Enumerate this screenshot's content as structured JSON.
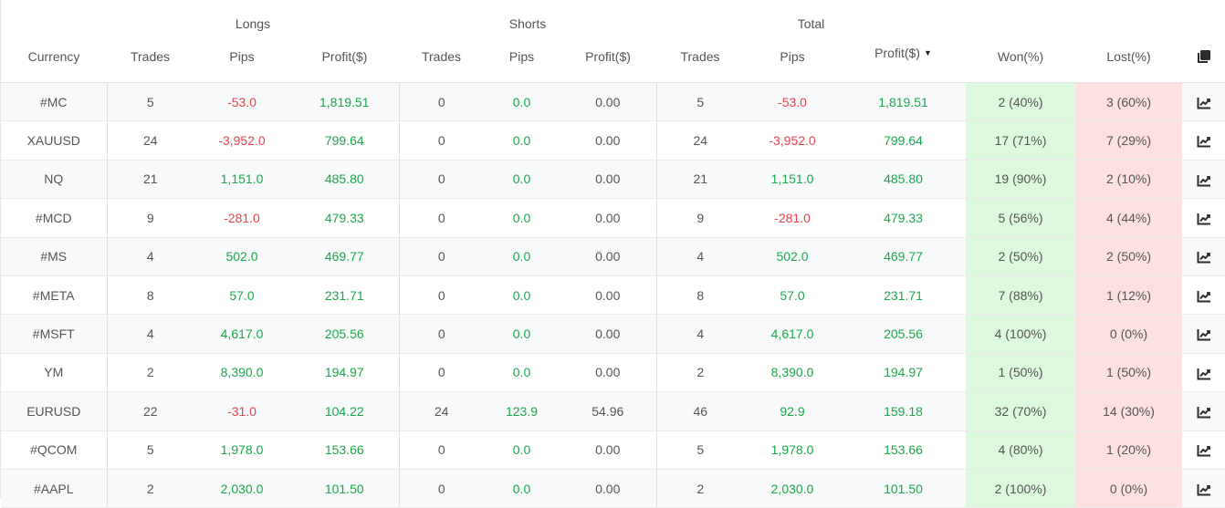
{
  "groups": {
    "longs": "Longs",
    "shorts": "Shorts",
    "total": "Total"
  },
  "columns": {
    "currency": "Currency",
    "longs_trades": "Trades",
    "longs_pips": "Pips",
    "longs_profit": "Profit($)",
    "shorts_trades": "Trades",
    "shorts_pips": "Pips",
    "shorts_profit": "Profit($)",
    "total_trades": "Trades",
    "total_pips": "Pips",
    "total_profit": "Profit($)",
    "won": "Won(%)",
    "lost": "Lost(%)"
  },
  "icons": {
    "copy": "copy-icon",
    "chart": "chart-line-icon",
    "sort": "sort-down-caret"
  },
  "colors": {
    "positive": "#1aa84b",
    "negative": "#e8424a",
    "won_bg": "#ddf9dd",
    "lost_bg": "#fde0e0"
  },
  "rows": [
    {
      "currency": "#MC",
      "l_trades": "5",
      "l_pips": "-53.0",
      "l_profit": "1,819.51",
      "s_trades": "0",
      "s_pips": "0.0",
      "s_profit": "0.00",
      "t_trades": "5",
      "t_pips": "-53.0",
      "t_profit": "1,819.51",
      "won": "2 (40%)",
      "lost": "3 (60%)"
    },
    {
      "currency": "XAUUSD",
      "l_trades": "24",
      "l_pips": "-3,952.0",
      "l_profit": "799.64",
      "s_trades": "0",
      "s_pips": "0.0",
      "s_profit": "0.00",
      "t_trades": "24",
      "t_pips": "-3,952.0",
      "t_profit": "799.64",
      "won": "17 (71%)",
      "lost": "7 (29%)"
    },
    {
      "currency": "NQ",
      "l_trades": "21",
      "l_pips": "1,151.0",
      "l_profit": "485.80",
      "s_trades": "0",
      "s_pips": "0.0",
      "s_profit": "0.00",
      "t_trades": "21",
      "t_pips": "1,151.0",
      "t_profit": "485.80",
      "won": "19 (90%)",
      "lost": "2 (10%)"
    },
    {
      "currency": "#MCD",
      "l_trades": "9",
      "l_pips": "-281.0",
      "l_profit": "479.33",
      "s_trades": "0",
      "s_pips": "0.0",
      "s_profit": "0.00",
      "t_trades": "9",
      "t_pips": "-281.0",
      "t_profit": "479.33",
      "won": "5 (56%)",
      "lost": "4 (44%)"
    },
    {
      "currency": "#MS",
      "l_trades": "4",
      "l_pips": "502.0",
      "l_profit": "469.77",
      "s_trades": "0",
      "s_pips": "0.0",
      "s_profit": "0.00",
      "t_trades": "4",
      "t_pips": "502.0",
      "t_profit": "469.77",
      "won": "2 (50%)",
      "lost": "2 (50%)"
    },
    {
      "currency": "#META",
      "l_trades": "8",
      "l_pips": "57.0",
      "l_profit": "231.71",
      "s_trades": "0",
      "s_pips": "0.0",
      "s_profit": "0.00",
      "t_trades": "8",
      "t_pips": "57.0",
      "t_profit": "231.71",
      "won": "7 (88%)",
      "lost": "1 (12%)"
    },
    {
      "currency": "#MSFT",
      "l_trades": "4",
      "l_pips": "4,617.0",
      "l_profit": "205.56",
      "s_trades": "0",
      "s_pips": "0.0",
      "s_profit": "0.00",
      "t_trades": "4",
      "t_pips": "4,617.0",
      "t_profit": "205.56",
      "won": "4 (100%)",
      "lost": "0 (0%)"
    },
    {
      "currency": "YM",
      "l_trades": "2",
      "l_pips": "8,390.0",
      "l_profit": "194.97",
      "s_trades": "0",
      "s_pips": "0.0",
      "s_profit": "0.00",
      "t_trades": "2",
      "t_pips": "8,390.0",
      "t_profit": "194.97",
      "won": "1 (50%)",
      "lost": "1 (50%)"
    },
    {
      "currency": "EURUSD",
      "l_trades": "22",
      "l_pips": "-31.0",
      "l_profit": "104.22",
      "s_trades": "24",
      "s_pips": "123.9",
      "s_profit": "54.96",
      "t_trades": "46",
      "t_pips": "92.9",
      "t_profit": "159.18",
      "won": "32 (70%)",
      "lost": "14 (30%)"
    },
    {
      "currency": "#QCOM",
      "l_trades": "5",
      "l_pips": "1,978.0",
      "l_profit": "153.66",
      "s_trades": "0",
      "s_pips": "0.0",
      "s_profit": "0.00",
      "t_trades": "5",
      "t_pips": "1,978.0",
      "t_profit": "153.66",
      "won": "4 (80%)",
      "lost": "1 (20%)"
    },
    {
      "currency": "#AAPL",
      "l_trades": "2",
      "l_pips": "2,030.0",
      "l_profit": "101.50",
      "s_trades": "0",
      "s_pips": "0.0",
      "s_profit": "0.00",
      "t_trades": "2",
      "t_pips": "2,030.0",
      "t_profit": "101.50",
      "won": "2 (100%)",
      "lost": "0 (0%)"
    }
  ]
}
